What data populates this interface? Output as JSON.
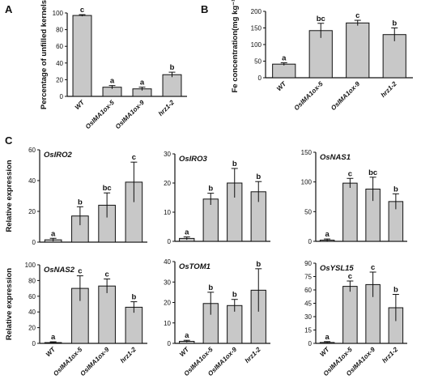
{
  "panels": {
    "A": "A",
    "B": "B",
    "C": "C"
  },
  "chart_data": [
    {
      "id": "A",
      "type": "bar",
      "categories": [
        "WT",
        "OsIMA1ox-5",
        "OsIMA1ox-9",
        "hrz1-2"
      ],
      "values": [
        97,
        11,
        9,
        26
      ],
      "errors": [
        1,
        2,
        2,
        3
      ],
      "letters": [
        "c",
        "a",
        "a",
        "b"
      ],
      "ylabel": "Percentage of unfilled kernels",
      "ylim": [
        0,
        100
      ],
      "yticks": [
        0,
        20,
        40,
        60,
        80,
        100
      ]
    },
    {
      "id": "B",
      "type": "bar",
      "categories": [
        "WT",
        "OsIMA1ox-5",
        "OsIMA1ox-9",
        "hrz1-2"
      ],
      "values": [
        41,
        142,
        165,
        130
      ],
      "errors": [
        4,
        22,
        8,
        20
      ],
      "letters": [
        "a",
        "bc",
        "c",
        "b"
      ],
      "ylabel": "Fe concentration(mg kg⁻¹)",
      "ylim": [
        0,
        200
      ],
      "yticks": [
        0,
        50,
        100,
        150,
        200
      ]
    },
    {
      "id": "OsIRO2",
      "type": "bar",
      "title": "OsIRO2",
      "categories": [
        "WT",
        "OsIMA1ox-5",
        "OsIMA1ox-9",
        "hrz1-2"
      ],
      "values": [
        1.5,
        17,
        24,
        39
      ],
      "errors": [
        1,
        6,
        8,
        13
      ],
      "letters": [
        "a",
        "b",
        "bc",
        "c"
      ],
      "ylabel": "Relative expression",
      "ylim": [
        0,
        60
      ],
      "yticks": [
        0,
        20,
        40,
        60
      ]
    },
    {
      "id": "OsIRO3",
      "type": "bar",
      "title": "OsIRO3",
      "categories": [
        "WT",
        "OsIMA1ox-5",
        "OsIMA1ox-9",
        "hrz1-2"
      ],
      "values": [
        1,
        14.5,
        20,
        17
      ],
      "errors": [
        0.5,
        2,
        5,
        3.5
      ],
      "letters": [
        "a",
        "b",
        "b",
        "b"
      ],
      "ylabel": "",
      "ylim": [
        0,
        30
      ],
      "yticks": [
        0,
        10,
        20,
        30
      ]
    },
    {
      "id": "OsNAS1",
      "type": "bar",
      "title": "OsNAS1",
      "categories": [
        "WT",
        "OsIMA1ox-5",
        "OsIMA1ox-9",
        "hrz1-2"
      ],
      "values": [
        2,
        98,
        88,
        67
      ],
      "errors": [
        2,
        8,
        20,
        13
      ],
      "letters": [
        "a",
        "c",
        "bc",
        "b"
      ],
      "ylabel": "",
      "ylim": [
        0,
        150
      ],
      "yticks": [
        0,
        50,
        100,
        150
      ]
    },
    {
      "id": "OsNAS2",
      "type": "bar",
      "title": "OsNAS2",
      "categories": [
        "WT",
        "OsIMA1ox-5",
        "OsIMA1ox-9",
        "hrz1-2"
      ],
      "values": [
        1,
        70,
        73,
        46
      ],
      "errors": [
        1,
        16,
        9,
        7
      ],
      "letters": [
        "a",
        "c",
        "c",
        "b"
      ],
      "ylabel": "Relative expression",
      "ylim": [
        0,
        100
      ],
      "yticks": [
        0,
        20,
        40,
        60,
        80,
        100
      ]
    },
    {
      "id": "OsTOM1",
      "type": "bar",
      "title": "OsTOM1",
      "categories": [
        "WT",
        "OsIMA1ox-5",
        "OsIMA1ox-9",
        "hrz1-2"
      ],
      "values": [
        1,
        19.5,
        18.5,
        26
      ],
      "errors": [
        0.5,
        5.5,
        3,
        10.5
      ],
      "letters": [
        "a",
        "b",
        "b",
        "b"
      ],
      "ylabel": "",
      "ylim": [
        0,
        40
      ],
      "yticks": [
        0,
        10,
        20,
        30,
        40
      ]
    },
    {
      "id": "OsYSL15",
      "type": "bar",
      "title": "OsYSL15",
      "categories": [
        "WT",
        "OsIMA1ox-5",
        "OsIMA1ox-9",
        "hrz1-2"
      ],
      "values": [
        1,
        64,
        66,
        40
      ],
      "errors": [
        1,
        6,
        14,
        15
      ],
      "letters": [
        "a",
        "c",
        "c",
        "b"
      ],
      "ylabel": "",
      "ylim": [
        0,
        90
      ],
      "yticks": [
        0,
        15,
        30,
        45,
        60,
        75,
        90
      ]
    }
  ]
}
